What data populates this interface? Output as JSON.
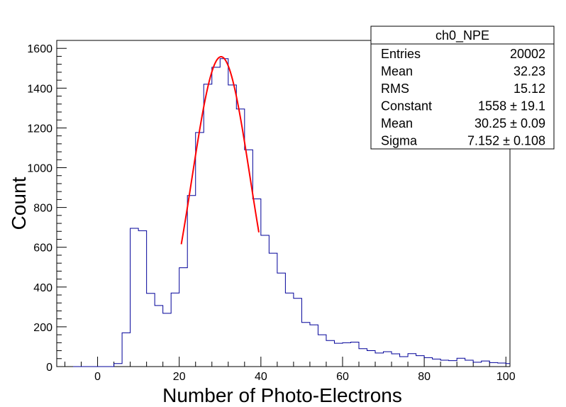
{
  "chart_data": {
    "type": "histogram",
    "title": "",
    "xlabel": "Number of Photo-Electrons",
    "ylabel": "Count",
    "xlim": [
      -10,
      101
    ],
    "ylim": [
      0,
      1640
    ],
    "bin_width": 2,
    "x_ticks": [
      0,
      20,
      40,
      60,
      80,
      100
    ],
    "y_ticks": [
      0,
      200,
      400,
      600,
      800,
      1000,
      1200,
      1400,
      1600
    ],
    "grid": false,
    "line_color": "#000099",
    "bins": [
      {
        "x0": -6,
        "count": 0
      },
      {
        "x0": -4,
        "count": 0
      },
      {
        "x0": -2,
        "count": 0
      },
      {
        "x0": 0,
        "count": 0
      },
      {
        "x0": 2,
        "count": 0
      },
      {
        "x0": 4,
        "count": 15
      },
      {
        "x0": 6,
        "count": 170
      },
      {
        "x0": 8,
        "count": 695
      },
      {
        "x0": 10,
        "count": 683
      },
      {
        "x0": 12,
        "count": 368
      },
      {
        "x0": 14,
        "count": 307
      },
      {
        "x0": 16,
        "count": 268
      },
      {
        "x0": 18,
        "count": 370
      },
      {
        "x0": 20,
        "count": 497
      },
      {
        "x0": 22,
        "count": 860
      },
      {
        "x0": 24,
        "count": 1177
      },
      {
        "x0": 26,
        "count": 1420
      },
      {
        "x0": 28,
        "count": 1505
      },
      {
        "x0": 30,
        "count": 1548
      },
      {
        "x0": 32,
        "count": 1416
      },
      {
        "x0": 34,
        "count": 1295
      },
      {
        "x0": 36,
        "count": 1090
      },
      {
        "x0": 38,
        "count": 843
      },
      {
        "x0": 40,
        "count": 660
      },
      {
        "x0": 42,
        "count": 570
      },
      {
        "x0": 44,
        "count": 470
      },
      {
        "x0": 46,
        "count": 370
      },
      {
        "x0": 48,
        "count": 343
      },
      {
        "x0": 50,
        "count": 222
      },
      {
        "x0": 52,
        "count": 210
      },
      {
        "x0": 54,
        "count": 160
      },
      {
        "x0": 56,
        "count": 131
      },
      {
        "x0": 58,
        "count": 117
      },
      {
        "x0": 60,
        "count": 120
      },
      {
        "x0": 62,
        "count": 123
      },
      {
        "x0": 64,
        "count": 90
      },
      {
        "x0": 66,
        "count": 80
      },
      {
        "x0": 68,
        "count": 68
      },
      {
        "x0": 70,
        "count": 75
      },
      {
        "x0": 72,
        "count": 64
      },
      {
        "x0": 74,
        "count": 50
      },
      {
        "x0": 76,
        "count": 65
      },
      {
        "x0": 78,
        "count": 55
      },
      {
        "x0": 80,
        "count": 45
      },
      {
        "x0": 82,
        "count": 38
      },
      {
        "x0": 84,
        "count": 32
      },
      {
        "x0": 86,
        "count": 30
      },
      {
        "x0": 88,
        "count": 42
      },
      {
        "x0": 90,
        "count": 32
      },
      {
        "x0": 92,
        "count": 22
      },
      {
        "x0": 94,
        "count": 28
      },
      {
        "x0": 96,
        "count": 20
      },
      {
        "x0": 98,
        "count": 18
      },
      {
        "x0": 100,
        "count": 15
      }
    ],
    "fit": {
      "function": "gaus",
      "constant": 1558,
      "mean": 30.25,
      "sigma": 7.152,
      "range": [
        20.5,
        39.5
      ],
      "color": "#ff0000"
    }
  },
  "stats_box": {
    "title": "ch0_NPE",
    "rows": [
      {
        "label": "Entries",
        "value": "20002"
      },
      {
        "label": "Mean",
        "value": "32.23"
      },
      {
        "label": "RMS",
        "value": "15.12"
      },
      {
        "label": "Constant",
        "value": "1558 ± 19.1"
      },
      {
        "label": "Mean",
        "value": "30.25 ± 0.09"
      },
      {
        "label": "Sigma",
        "value": "7.152 ± 0.108"
      }
    ]
  }
}
